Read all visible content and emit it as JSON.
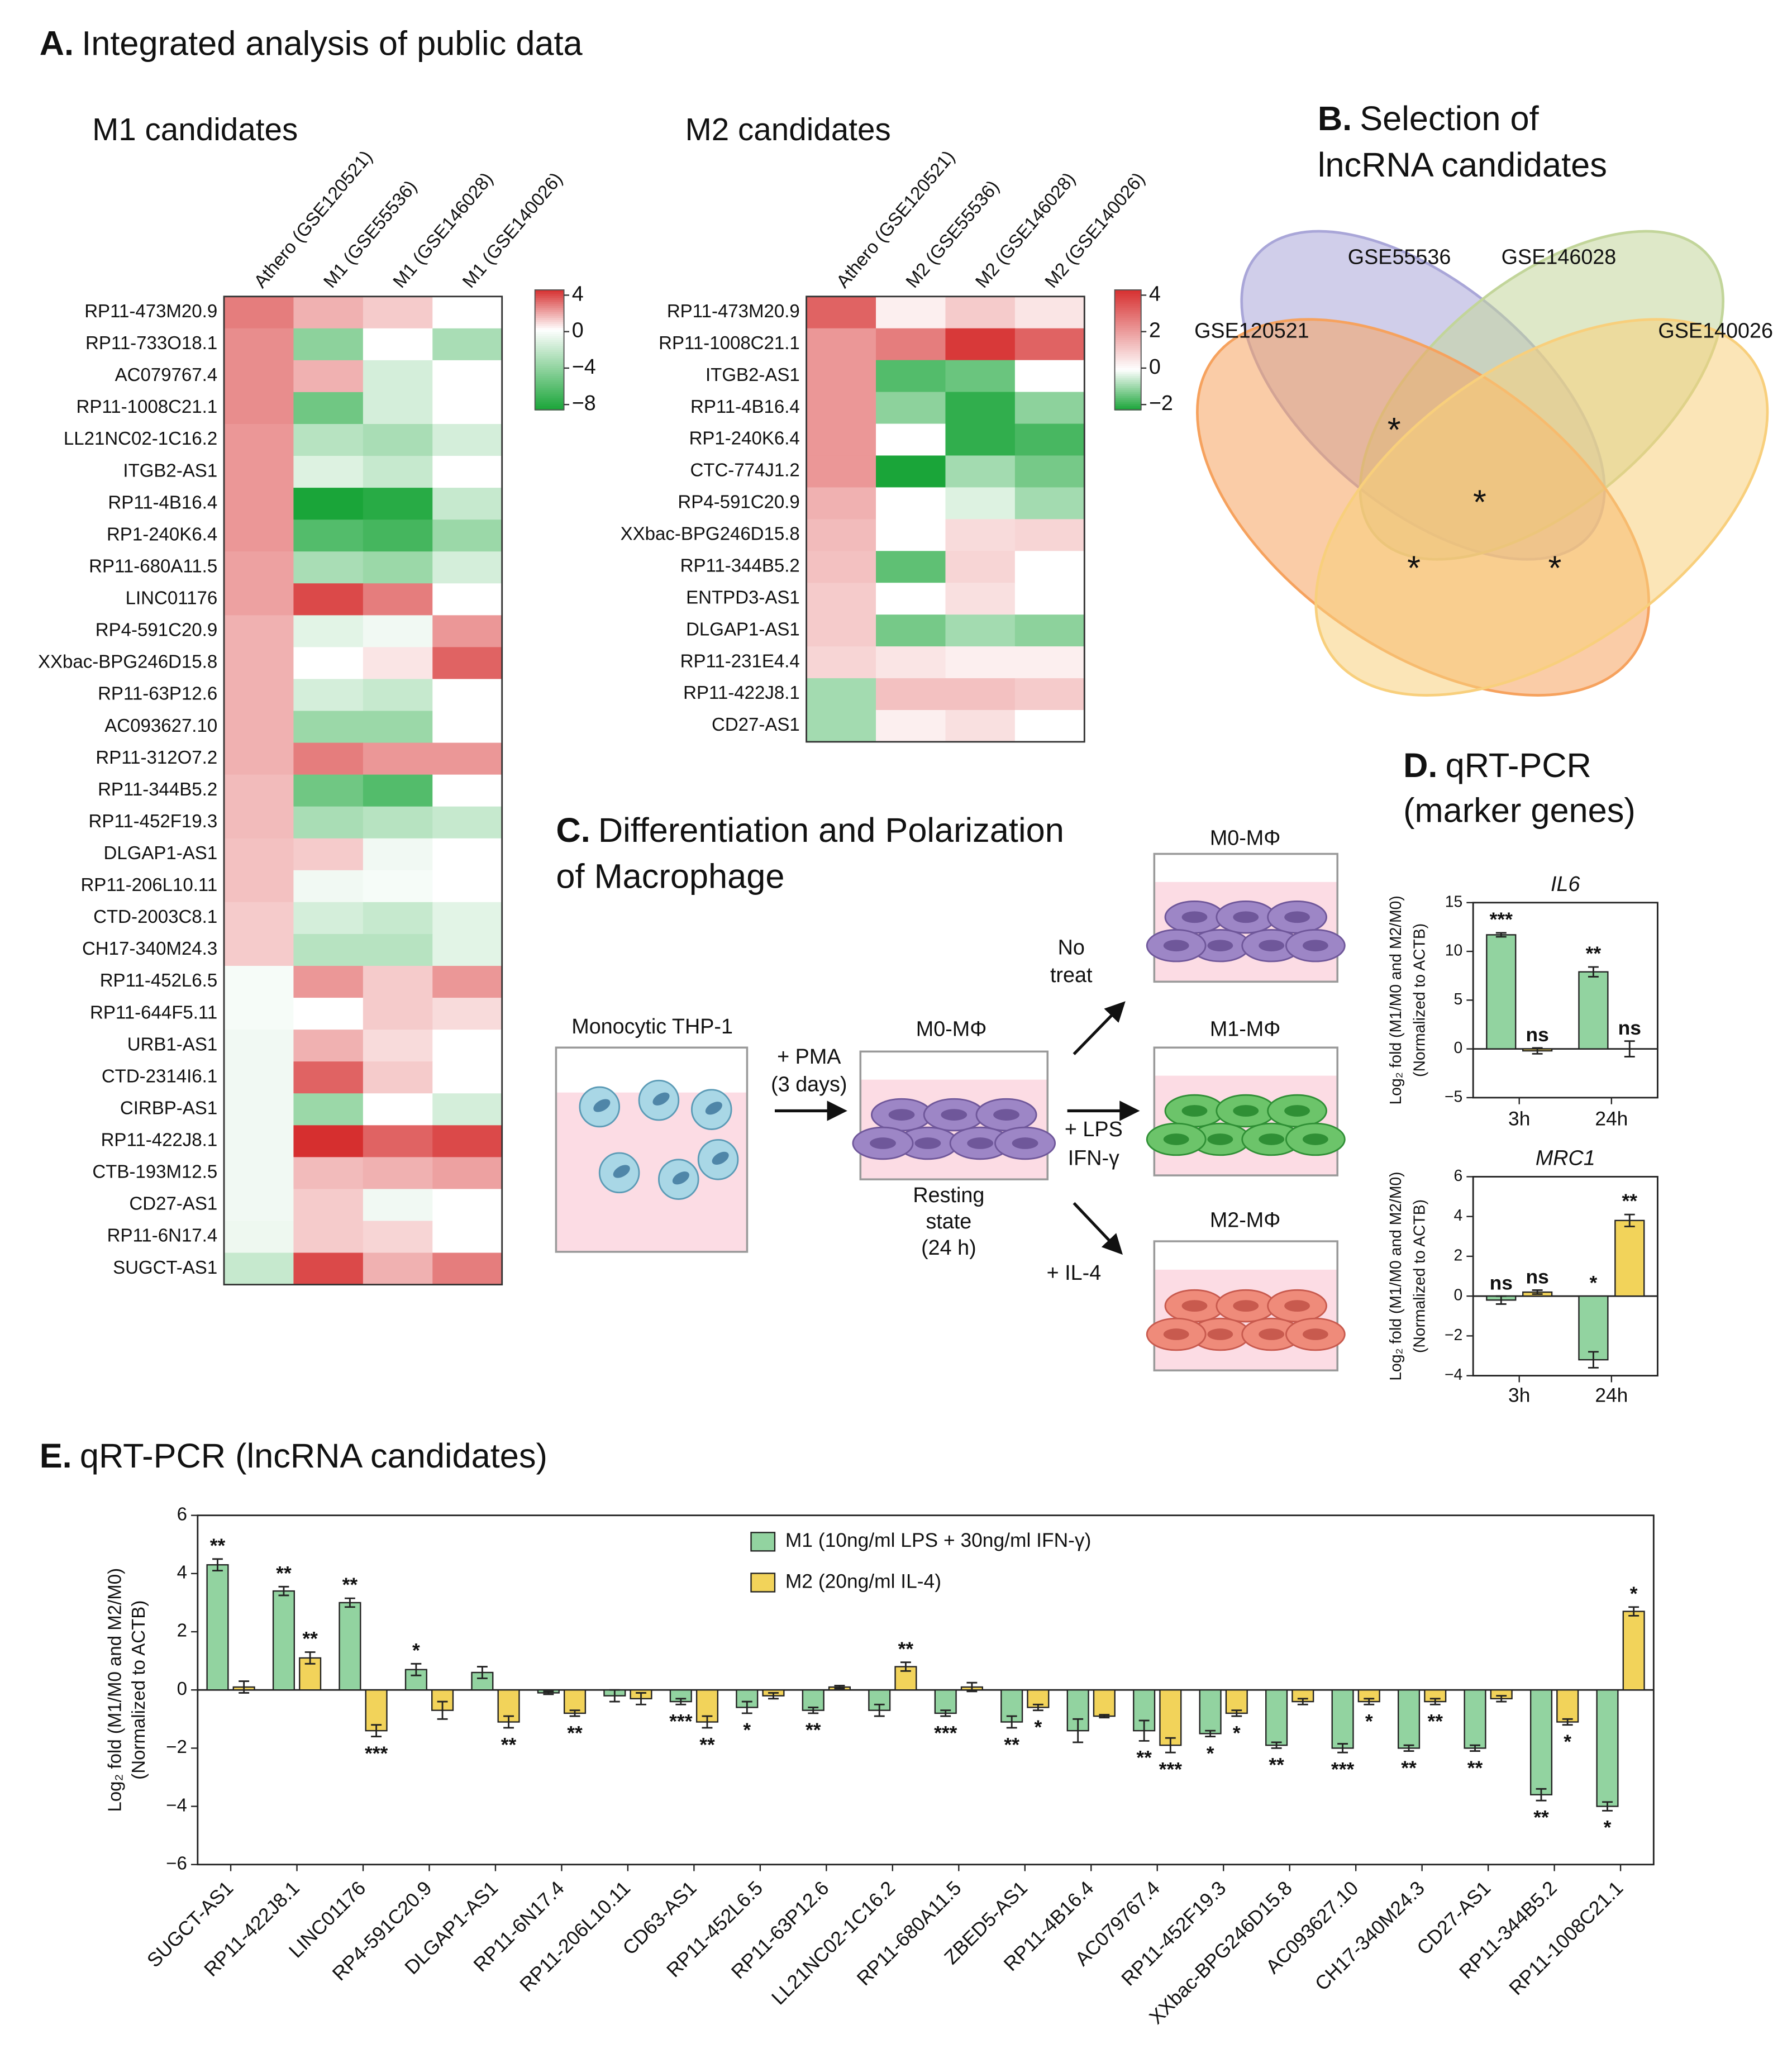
{
  "panels": {
    "A": {
      "letter": "A.",
      "title": "Integrated analysis of public data"
    },
    "B": {
      "letter": "B.",
      "title": [
        "Selection of",
        "lncRNA candidates"
      ]
    },
    "C": {
      "letter": "C.",
      "title": [
        "Differentiation and Polarization",
        "of Macrophage"
      ],
      "thp1": "Monocytic THP-1",
      "pma": [
        "+ PMA",
        "(3 days)"
      ],
      "m0": "M0-MΦ",
      "resting": [
        "Resting",
        "state",
        "(24 h)"
      ],
      "no_treat": [
        "No",
        "treat"
      ],
      "lps": [
        "+ LPS",
        "IFN-γ"
      ],
      "il4": "+ IL-4",
      "m0_out": "M0-MΦ",
      "m1": "M1-MΦ",
      "m2": "M2-MΦ"
    },
    "D": {
      "letter": "D.",
      "title": [
        "qRT-PCR",
        "(marker genes)"
      ]
    },
    "E": {
      "letter": "E.",
      "title": "qRT-PCR (lncRNA candidates)"
    }
  },
  "chart_data": [
    {
      "type": "heatmap",
      "title": "M1 candidates",
      "columns": [
        "Athero (GSE120521)",
        "M1 (GSE55536)",
        "M1 (GSE146028)",
        "M1 (GSE140026)"
      ],
      "rows": [
        "RP11-473M20.9",
        "RP11-733O18.1",
        "AC079767.4",
        "RP11-1008C21.1",
        "LL21NC02-1C16.2",
        "ITGB2-AS1",
        "RP11-4B16.4",
        "RP1-240K6.4",
        "RP11-680A11.5",
        "LINC01176",
        "RP4-591C20.9",
        "XXbac-BPG246D15.8",
        "RP11-63P12.6",
        "AC093627.10",
        "RP11-312O7.2",
        "RP11-344B5.2",
        "RP11-452F19.3",
        "DLGAP1-AS1",
        "RP11-206L10.11",
        "CTD-2003C8.1",
        "CH17-340M24.3",
        "RP11-452L6.5",
        "RP11-644F5.11",
        "URB1-AS1",
        "CTD-2314I6.1",
        "CIRBP-AS1",
        "RP11-422J8.1",
        "CTB-193M12.5",
        "CD27-AS1",
        "RP11-6N17.4",
        "SUGCT-AS1"
      ],
      "values": [
        [
          2.5,
          1.5,
          1,
          0
        ],
        [
          2.2,
          -4,
          0,
          -3
        ],
        [
          2.2,
          1.5,
          -1.5,
          0
        ],
        [
          2.2,
          -5,
          -1.5,
          0
        ],
        [
          2,
          -2.5,
          -3,
          -1.5
        ],
        [
          2,
          -1.2,
          -2,
          0
        ],
        [
          2,
          -8,
          -7.5,
          -2
        ],
        [
          2,
          -6,
          -6.5,
          -3.5
        ],
        [
          1.8,
          -3,
          -3.5,
          -1.5
        ],
        [
          1.8,
          3.5,
          2.5,
          0
        ],
        [
          1.5,
          -1,
          -0.5,
          2
        ],
        [
          1.5,
          0,
          0.5,
          3
        ],
        [
          1.5,
          -1.5,
          -2,
          0
        ],
        [
          1.5,
          -3.5,
          -3.5,
          0
        ],
        [
          1.5,
          2.5,
          2,
          2
        ],
        [
          1.3,
          -5,
          -6,
          0
        ],
        [
          1.3,
          -3,
          -2.5,
          -2
        ],
        [
          1.2,
          1,
          -0.5,
          0
        ],
        [
          1.2,
          -0.5,
          -0.3,
          0
        ],
        [
          1,
          -1.5,
          -2,
          -1
        ],
        [
          1,
          -2.5,
          -2.5,
          -1
        ],
        [
          -0.3,
          2,
          1,
          2
        ],
        [
          -0.3,
          0,
          1,
          0.7
        ],
        [
          -0.5,
          1.5,
          0.7,
          0
        ],
        [
          -0.5,
          3,
          1,
          0
        ],
        [
          -0.5,
          -3.5,
          0,
          -1.5
        ],
        [
          -0.5,
          4,
          3,
          3.5
        ],
        [
          -0.5,
          1.3,
          1.5,
          1.8
        ],
        [
          -0.5,
          1,
          -0.5,
          0
        ],
        [
          -0.6,
          1,
          0.8,
          0
        ],
        [
          -2,
          3.5,
          1.5,
          2.5
        ]
      ],
      "zlim": [
        -8,
        4
      ],
      "zticks": [
        4,
        0,
        {
          "value": -4,
          "label": "−4"
        },
        {
          "value": -8,
          "label": "−8"
        }
      ],
      "colors": {
        "high": "#d62f2f",
        "mid": "#ffffff",
        "low": "#1aa539"
      }
    },
    {
      "type": "heatmap",
      "title": "M2 candidates",
      "columns": [
        "Athero (GSE120521)",
        "M2 (GSE55536)",
        "M2 (GSE146028)",
        "M2 (GSE140026)"
      ],
      "rows": [
        "RP11-473M20.9",
        "RP11-1008C21.1",
        "ITGB2-AS1",
        "RP11-4B16.4",
        "RP1-240K6.4",
        "CTC-774J1.2",
        "RP4-591C20.9",
        "XXbac-BPG246D15.8",
        "RP11-344B5.2",
        "ENTPD3-AS1",
        "DLGAP1-AS1",
        "RP11-231E4.4",
        "RP11-422J8.1",
        "CD27-AS1"
      ],
      "values": [
        [
          3,
          0.3,
          1,
          0.5
        ],
        [
          2,
          2.5,
          3.8,
          3
        ],
        [
          2,
          -1.5,
          -1.3,
          0
        ],
        [
          2,
          -1,
          -1.8,
          -1
        ],
        [
          2,
          0,
          -1.8,
          -1.6
        ],
        [
          2,
          -2,
          -0.8,
          -1.2
        ],
        [
          1.5,
          0,
          -0.3,
          -0.8
        ],
        [
          1.3,
          0,
          0.7,
          0.8
        ],
        [
          1.2,
          -1.4,
          0.8,
          0
        ],
        [
          1,
          0,
          0.6,
          0
        ],
        [
          1,
          -1.2,
          -0.8,
          -1
        ],
        [
          0.8,
          0.5,
          0.3,
          0.3
        ],
        [
          -0.8,
          1.2,
          1.2,
          1
        ],
        [
          -0.8,
          0.3,
          0.6,
          0
        ]
      ],
      "zlim": [
        -2,
        4
      ],
      "zticks": [
        4,
        2,
        0,
        {
          "value": -2,
          "label": "−2"
        }
      ],
      "colors": {
        "high": "#d62f2f",
        "mid": "#ffffff",
        "low": "#1aa539"
      }
    },
    {
      "type": "venn",
      "sets": [
        {
          "name": "GSE55536",
          "color": "#a9a6d8"
        },
        {
          "name": "GSE146028",
          "color": "#c2d59a"
        },
        {
          "name": "GSE120521",
          "color": "#f6a25e"
        },
        {
          "name": "GSE140026",
          "color": "#f8cf7c"
        }
      ],
      "annotations": [
        "*",
        "*",
        "*",
        "*"
      ]
    },
    {
      "type": "bar",
      "title": "IL6",
      "categories": [
        "3h",
        "24h"
      ],
      "ylabel": [
        "Log₂ fold (M1/M0 and M2/M0)",
        "(Normalized to ACTB)"
      ],
      "ylim": [
        -5,
        15
      ],
      "yticks": [
        {
          "value": -5,
          "label": "−5"
        },
        0,
        5,
        10,
        15
      ],
      "series": [
        {
          "color": "#92d3a0",
          "values": [
            11.7,
            7.9
          ],
          "errors": [
            0.2,
            0.5
          ],
          "annotations": [
            "***",
            "**"
          ]
        },
        {
          "color": "#f2d35a",
          "values": [
            -0.2,
            0
          ],
          "errors": [
            0.3,
            0.8
          ],
          "annotations": [
            "ns",
            "ns"
          ]
        }
      ]
    },
    {
      "type": "bar",
      "title": "MRC1",
      "categories": [
        "3h",
        "24h"
      ],
      "ylabel": [
        "Log₂ fold (M1/M0 and M2/M0)",
        "(Normalized to ACTB)"
      ],
      "ylim": [
        -4,
        6
      ],
      "yticks": [
        {
          "value": -4,
          "label": "−4"
        },
        {
          "value": -2,
          "label": "−2"
        },
        0,
        2,
        4,
        6
      ],
      "series": [
        {
          "color": "#92d3a0",
          "values": [
            -0.2,
            -3.2
          ],
          "errors": [
            0.2,
            0.4
          ],
          "annotations": [
            "ns",
            "*"
          ]
        },
        {
          "color": "#f2d35a",
          "values": [
            0.2,
            3.8
          ],
          "errors": [
            0.1,
            0.3
          ],
          "annotations": [
            "ns",
            "**"
          ]
        }
      ]
    },
    {
      "type": "bar",
      "categories": [
        "SUGCT-AS1",
        "RP11-422J8.1",
        "LINC01176",
        "RP4-591C20.9",
        "DLGAP1-AS1",
        "RP11-6N17.4",
        "RP11-206L10.11",
        "CD63-AS1",
        "RP11-452L6.5",
        "RP11-63P12.6",
        "LL21NC02-1C16.2",
        "RP11-680A11.5",
        "ZBED5-AS1",
        "RP11-4B16.4",
        "AC079767.4",
        "RP11-452F19.3",
        "XXbac-BPG246D15.8",
        "AC093627.10",
        "CH17-340M24.3",
        "CD27-AS1",
        "RP11-344B5.2",
        "RP11-1008C21.1"
      ],
      "ylabel": [
        "Log₂ fold (M1/M0 and M2/M0)",
        "(Normalized to ACTB)"
      ],
      "ylim": [
        -6,
        6
      ],
      "yticks": [
        {
          "value": -6,
          "label": "−6"
        },
        {
          "value": -4,
          "label": "−4"
        },
        {
          "value": -2,
          "label": "−2"
        },
        0,
        2,
        4,
        6
      ],
      "series": [
        {
          "name": "M1 (10ng/ml LPS + 30ng/ml IFN-γ)",
          "color": "#92d3a0",
          "values": [
            4.3,
            3.4,
            3.0,
            0.7,
            0.6,
            -0.1,
            -0.2,
            -0.4,
            -0.6,
            -0.7,
            -0.7,
            -0.8,
            -1.1,
            -1.4,
            -1.4,
            -1.5,
            -1.9,
            -2.0,
            -2.0,
            -2.0,
            -3.6,
            -4.0
          ],
          "errors": [
            0.2,
            0.15,
            0.15,
            0.2,
            0.2,
            0.05,
            0.2,
            0.1,
            0.2,
            0.1,
            0.2,
            0.1,
            0.2,
            0.4,
            0.35,
            0.1,
            0.1,
            0.15,
            0.1,
            0.1,
            0.2,
            0.15
          ],
          "annotations": [
            "**",
            "**",
            "**",
            "*",
            null,
            null,
            null,
            "***",
            "*",
            "**",
            null,
            "***",
            "**",
            null,
            "**",
            "*",
            "**",
            "***",
            "**",
            "**",
            "**",
            "*"
          ]
        },
        {
          "name": "M2 (20ng/ml IL-4)",
          "color": "#f2d35a",
          "values": [
            0.1,
            1.1,
            -1.4,
            -0.7,
            -1.1,
            -0.8,
            -0.3,
            -1.1,
            -0.2,
            0.1,
            0.8,
            0.1,
            -0.6,
            -0.9,
            -1.9,
            -0.8,
            -0.4,
            -0.4,
            -0.4,
            -0.3,
            -1.1,
            2.7
          ],
          "errors": [
            0.2,
            0.2,
            0.2,
            0.3,
            0.2,
            0.1,
            0.2,
            0.2,
            0.1,
            0.05,
            0.15,
            0.15,
            0.1,
            0.05,
            0.25,
            0.1,
            0.1,
            0.1,
            0.1,
            0.1,
            0.1,
            0.15
          ],
          "annotations": [
            null,
            "**",
            "***",
            null,
            "**",
            "**",
            null,
            "**",
            null,
            null,
            "**",
            null,
            "*",
            null,
            "***",
            "*",
            null,
            "*",
            "**",
            null,
            "*",
            "*"
          ]
        }
      ]
    }
  ]
}
